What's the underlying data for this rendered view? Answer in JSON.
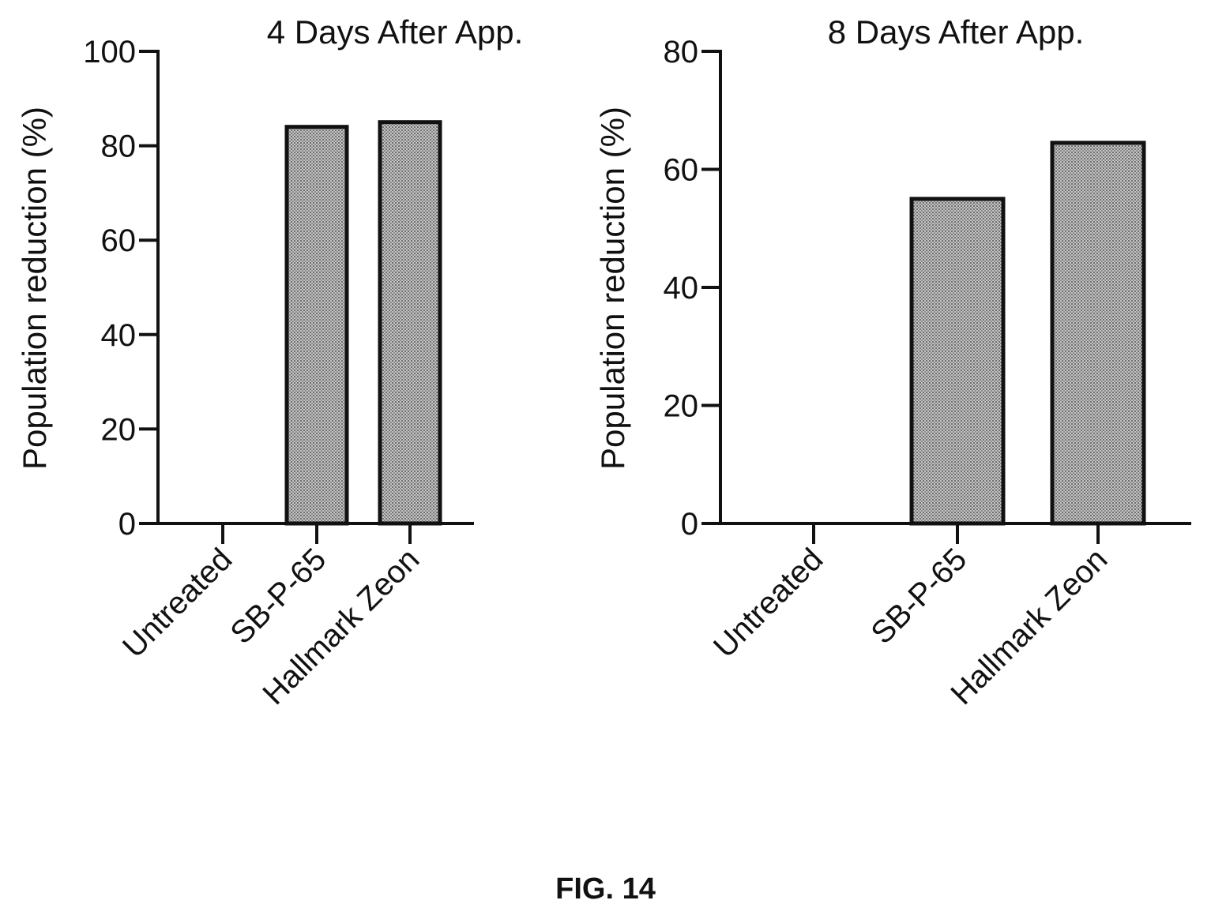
{
  "figure": {
    "caption": "FIG. 14"
  },
  "style": {
    "bar_fill": "#a8a8a8",
    "axis_color": "#111111"
  },
  "chart_data": [
    {
      "type": "bar",
      "title": "4  Days After  App.",
      "xlabel": "",
      "ylabel": "Population reduction (%)",
      "categories": [
        "Untreated",
        "SB-P-65",
        "Hallmark Zeon"
      ],
      "values": [
        0,
        84,
        85
      ],
      "ylim": [
        0,
        100
      ],
      "yticks": [
        "0",
        "20",
        "40",
        "60",
        "80",
        "100"
      ],
      "grid": false
    },
    {
      "type": "bar",
      "title": "8  Days After  App.",
      "xlabel": "",
      "ylabel": "Population reduction (%)",
      "categories": [
        "Untreated",
        "SB-P-65",
        "Hallmark Zeon"
      ],
      "values": [
        0,
        55,
        64.5
      ],
      "ylim": [
        0,
        80
      ],
      "yticks": [
        "0",
        "20",
        "40",
        "60",
        "80"
      ],
      "grid": false
    }
  ]
}
